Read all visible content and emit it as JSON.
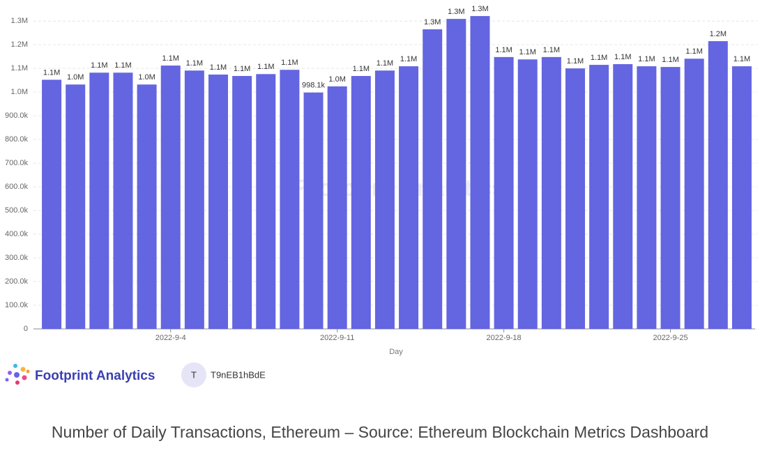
{
  "chart_data": {
    "type": "bar",
    "categories": [
      null,
      null,
      null,
      null,
      null,
      "2022-9-4",
      null,
      null,
      null,
      null,
      null,
      null,
      "2022-9-11",
      null,
      null,
      null,
      null,
      null,
      null,
      "2022-9-18",
      null,
      null,
      null,
      null,
      null,
      null,
      "2022-9-25",
      null,
      null,
      null
    ],
    "values": [
      1052000,
      1032000,
      1082000,
      1082000,
      1032000,
      1112000,
      1091000,
      1074000,
      1068000,
      1076000,
      1094000,
      998100,
      1024000,
      1068000,
      1091000,
      1109000,
      1265000,
      1309000,
      1321000,
      1148000,
      1138000,
      1148000,
      1100000,
      1115000,
      1118000,
      1109000,
      1106000,
      1141000,
      1215000,
      1109000
    ],
    "value_labels": [
      "1.1M",
      "1.0M",
      "1.1M",
      "1.1M",
      "1.0M",
      "1.1M",
      "1.1M",
      "1.1M",
      "1.1M",
      "1.1M",
      "1.1M",
      "998.1k",
      "1.0M",
      "1.1M",
      "1.1M",
      "1.1M",
      "1.3M",
      "1.3M",
      "1.3M",
      "1.1M",
      "1.1M",
      "1.1M",
      "1.1M",
      "1.1M",
      "1.1M",
      "1.1M",
      "1.1M",
      "1.1M",
      "1.2M",
      "1.1M"
    ],
    "color": "#6465e1",
    "x_label": "Day",
    "ylim": [
      0,
      1330000
    ],
    "yticks": [
      0,
      {
        "value": 100000,
        "label": "100.0k"
      },
      {
        "value": 200000,
        "label": "200.0k"
      },
      {
        "value": 300000,
        "label": "300.0k"
      },
      {
        "value": 400000,
        "label": "400.0k"
      },
      {
        "value": 500000,
        "label": "500.0k"
      },
      {
        "value": 600000,
        "label": "600.0k"
      },
      {
        "value": 700000,
        "label": "700.0k"
      },
      {
        "value": 800000,
        "label": "800.0k"
      },
      {
        "value": 900000,
        "label": "900.0k"
      },
      {
        "value": 1000000,
        "label": "1.0M"
      },
      {
        "value": 1100000,
        "label": "1.1M"
      },
      {
        "value": 1200000,
        "label": "1.2M"
      },
      {
        "value": 1300000,
        "label": "1.3M"
      }
    ],
    "grid": true,
    "watermark": "Footprint Analytics"
  },
  "footer": {
    "brand": "Footprint Analytics",
    "avatar": "T",
    "user": "T9nEB1hBdE"
  },
  "caption": "Number of Daily Transactions, Ethereum – Source: Ethereum Blockchain Metrics Dashboard"
}
